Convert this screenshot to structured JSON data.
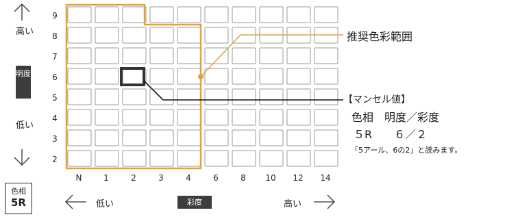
{
  "y_axis": {
    "ticks": [
      "9",
      "8",
      "7",
      "6",
      "5",
      "4",
      "3",
      "2"
    ],
    "high_label": "高い",
    "low_label": "低い",
    "badge": "明度"
  },
  "x_axis": {
    "ticks": [
      "N",
      "1",
      "2",
      "3",
      "4",
      "6",
      "8",
      "10",
      "12",
      "14"
    ],
    "low_label": "低い",
    "high_label": "高い",
    "badge": "彩度"
  },
  "hue_box": {
    "line1": "色相",
    "line2": "5R"
  },
  "callouts": {
    "recommended": "推奨色彩範囲",
    "munsell_title": "【マンセル値】",
    "header_row": "色相　明度／彩度",
    "value_row": "５R　　６／２",
    "reading": "「5アール、6の2」と読みます。"
  },
  "highlight": {
    "chroma": "2",
    "value": "6"
  },
  "colors": {
    "range": "#d9a54a",
    "grid": "#999999",
    "highlight": "#333333",
    "badge": "#3d3d3d"
  }
}
